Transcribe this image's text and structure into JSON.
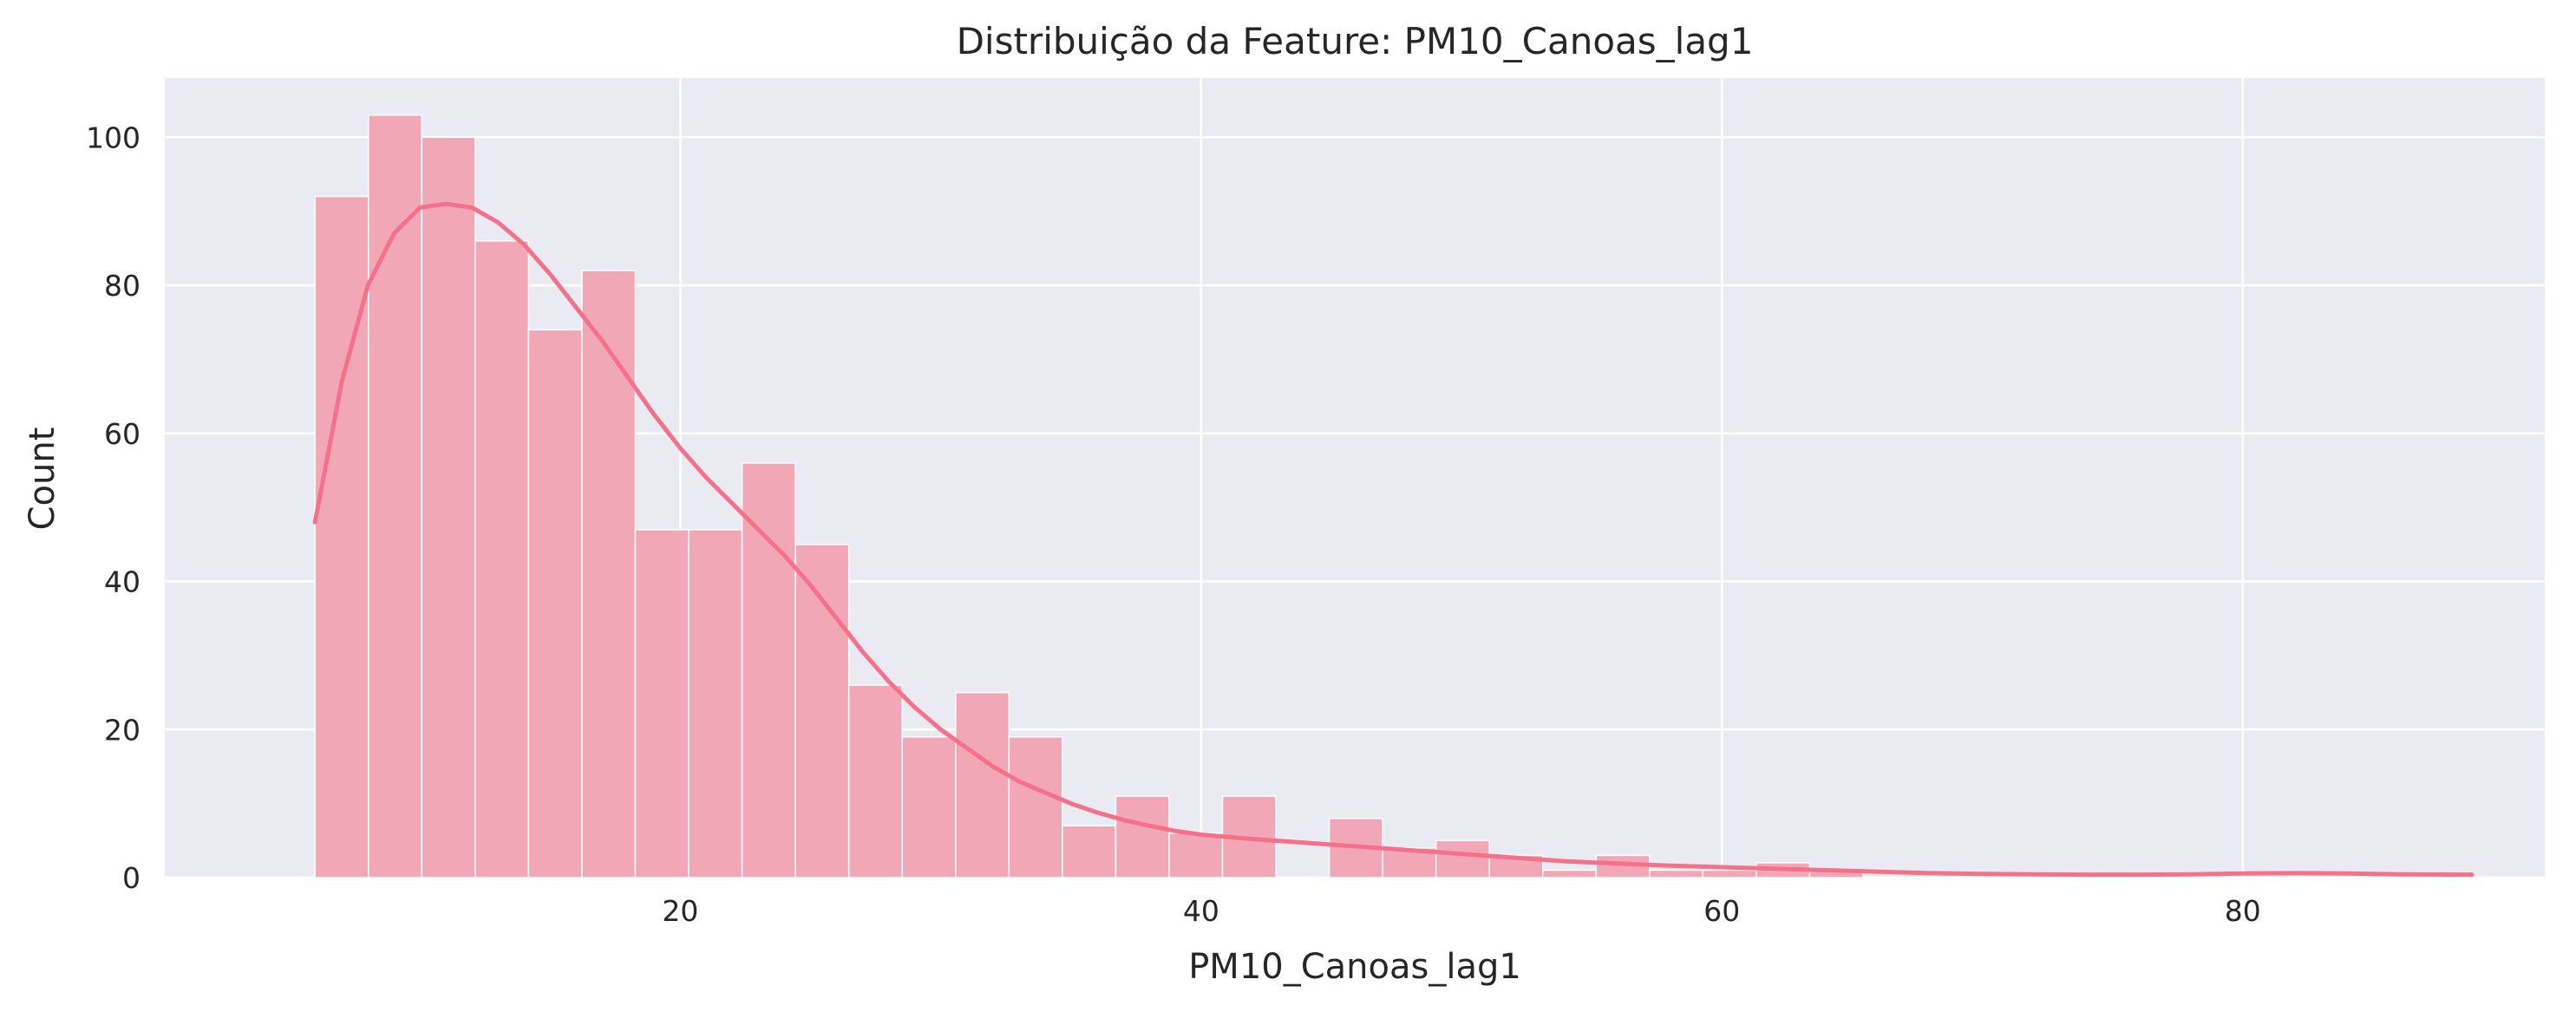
{
  "chart_data": {
    "type": "bar",
    "title": "Distribuição da Feature: PM10_Canoas_lag1",
    "xlabel": "PM10_Canoas_lag1",
    "ylabel": "Count",
    "xlim": [
      0.2,
      91.6
    ],
    "ylim": [
      0,
      108
    ],
    "x_ticks": [
      20,
      40,
      60,
      80
    ],
    "y_ticks": [
      0,
      20,
      40,
      60,
      80,
      100
    ],
    "grid": true,
    "bin_edges": [
      5.97,
      8.02,
      10.07,
      12.12,
      14.17,
      16.22,
      18.27,
      20.32,
      22.37,
      24.42,
      26.47,
      28.52,
      30.57,
      32.62,
      34.67,
      36.72,
      38.77,
      40.82,
      42.87,
      44.92,
      46.97,
      49.02,
      51.07,
      53.12,
      55.17,
      57.22,
      59.27,
      61.32,
      63.37,
      65.42,
      67.47,
      69.52,
      71.57,
      73.62,
      75.67,
      77.72,
      79.77,
      81.82,
      83.87,
      85.92,
      87.97,
      88.8
    ],
    "counts": [
      92,
      103,
      100,
      86,
      74,
      82,
      47,
      47,
      56,
      45,
      26,
      19,
      25,
      19,
      7,
      11,
      6,
      11,
      0,
      8,
      4,
      5,
      3,
      1,
      3,
      1,
      1,
      2,
      1,
      0,
      0,
      0,
      0,
      0,
      0,
      0,
      0,
      0,
      0,
      0,
      0
    ],
    "kde": {
      "x": [
        5.97,
        7,
        8,
        9,
        10,
        11,
        12,
        13,
        14,
        15,
        16,
        17,
        18,
        19,
        20,
        21,
        22,
        23,
        24,
        25,
        26,
        27,
        28,
        29,
        30,
        31,
        32,
        33,
        34,
        35,
        36,
        37,
        38,
        39,
        40,
        42,
        44,
        46,
        48,
        50,
        52,
        54,
        56,
        58,
        60,
        62,
        64,
        66,
        68,
        70,
        72,
        74,
        76,
        78,
        80,
        82,
        84,
        86,
        88.8
      ],
      "y": [
        48,
        67,
        80,
        87,
        90.5,
        91,
        90.5,
        88.5,
        85.5,
        81.5,
        77,
        72.5,
        67.5,
        62.5,
        58,
        54,
        50.5,
        47,
        43.5,
        39.5,
        35,
        30.5,
        26.5,
        23,
        20,
        17.5,
        15,
        13,
        11.5,
        10,
        8.8,
        7.8,
        7,
        6.3,
        5.8,
        5.2,
        4.7,
        4.2,
        3.7,
        3.2,
        2.7,
        2.2,
        1.9,
        1.6,
        1.4,
        1.2,
        1.0,
        0.8,
        0.6,
        0.5,
        0.45,
        0.4,
        0.4,
        0.45,
        0.55,
        0.6,
        0.55,
        0.45,
        0.4
      ]
    },
    "colors": {
      "background": "#eaeaf2",
      "grid": "#ffffff",
      "bar_fill": "#f2a7b7",
      "bar_edge": "#ffffff",
      "kde_line": "#f5718a",
      "text": "#262626"
    }
  }
}
